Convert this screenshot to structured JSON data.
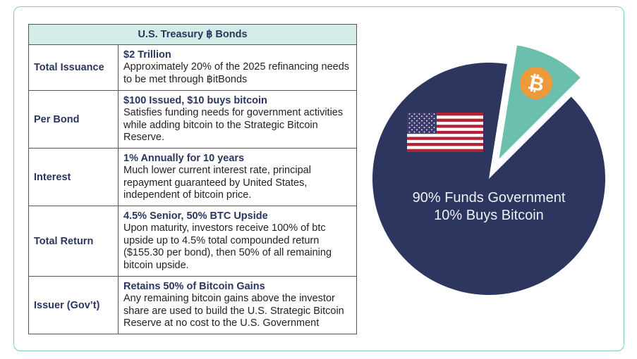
{
  "table": {
    "title": "U.S. Treasury ฿ Bonds",
    "rows": [
      {
        "label": "Total Issuance",
        "headline": "$2 Trillion",
        "text": "Approximately 20% of the 2025 refinancing needs to be met through ฿itBonds"
      },
      {
        "label": "Per Bond",
        "headline": "$100 Issued, $10 buys bitcoin",
        "text": "Satisfies funding needs for government activities while adding bitcoin to the Strategic Bitcoin Reserve."
      },
      {
        "label": "Interest",
        "headline": "1% Annually for 10 years",
        "text": "Much lower current interest rate, principal repayment guaranteed by United States, independent of bitcoin price."
      },
      {
        "label": "Total Return",
        "headline": "4.5% Senior, 50% BTC Upside",
        "text": "Upon maturity, investors receive 100% of btc upside up to 4.5% total compounded return ($155.30 per bond), then 50% of all remaining bitcoin upside."
      },
      {
        "label": "Issuer (Gov’t)",
        "headline": "Retains 50% of Bitcoin Gains",
        "text": "Any remaining bitcoin gains above the investor share are used to build the U.S. Strategic Bitcoin Reserve at no cost to the U.S. Government"
      }
    ]
  },
  "pie": {
    "slices": [
      {
        "name": "Funds Government",
        "value": 90,
        "color": "#2c365e",
        "icon": "us-flag-icon"
      },
      {
        "name": "Buys Bitcoin",
        "value": 10,
        "color": "#6bbfac",
        "icon": "bitcoin-icon"
      }
    ],
    "label_line1": "90% Funds Government",
    "label_line2": "10% Buys Bitcoin",
    "bitcoin_color": "#ec9a3a"
  }
}
